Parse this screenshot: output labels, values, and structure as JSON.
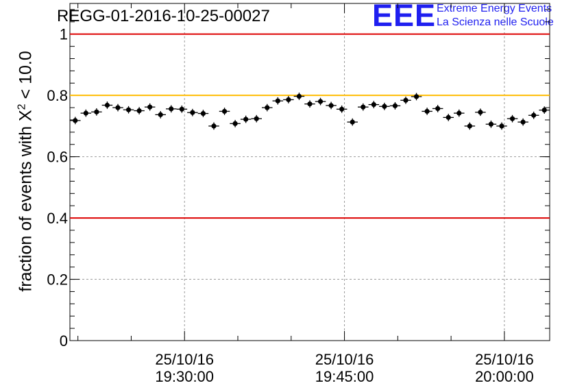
{
  "title": "REGG-01-2016-10-25-00027",
  "logo": {
    "mark": "EEE",
    "line1": "Extreme Energy Events",
    "line2": "La Scienza nelle Scuole",
    "color": "#1f1ff0"
  },
  "chart_data": {
    "type": "scatter",
    "title": "REGG-01-2016-10-25-00027",
    "ylabel_prefix": "fraction of events with X",
    "ylabel_sup": "2",
    "ylabel_suffix": " < 10.0",
    "xlabel": "",
    "ylim": [
      0,
      1.1
    ],
    "xlim_minutes": [
      19.25,
      64.25
    ],
    "yticks": [
      {
        "value": 0,
        "label": "0"
      },
      {
        "value": 0.2,
        "label": "0.2"
      },
      {
        "value": 0.4,
        "label": "0.4"
      },
      {
        "value": 0.6,
        "label": "0.6"
      },
      {
        "value": 0.8,
        "label": "0.8"
      },
      {
        "value": 1,
        "label": "1"
      }
    ],
    "xticks": [
      {
        "minutes": 30,
        "date": "25/10/16",
        "time": "19:30:00"
      },
      {
        "minutes": 45,
        "date": "25/10/16",
        "time": "19:45:00"
      },
      {
        "minutes": 60,
        "date": "25/10/16",
        "time": "20:00:00"
      }
    ],
    "reference_lines": [
      {
        "y": 1.0,
        "color": "#dd0000"
      },
      {
        "y": 0.8,
        "color": "#ffbb00"
      },
      {
        "y": 0.4,
        "color": "#dd0000"
      }
    ],
    "series": [
      {
        "name": "fraction",
        "x_minutes": [
          19.75,
          20.75,
          21.75,
          22.75,
          23.75,
          24.75,
          25.75,
          26.75,
          27.75,
          28.75,
          29.75,
          30.75,
          31.75,
          32.75,
          33.75,
          34.75,
          35.75,
          36.75,
          37.75,
          38.75,
          39.75,
          40.75,
          41.75,
          42.75,
          43.75,
          44.75,
          45.75,
          46.75,
          47.75,
          48.75,
          49.75,
          50.75,
          51.75,
          52.75,
          53.75,
          54.75,
          55.75,
          56.75,
          57.75,
          58.75,
          59.75,
          60.75,
          61.75,
          62.75,
          63.75
        ],
        "values": [
          0.718,
          0.742,
          0.746,
          0.768,
          0.76,
          0.753,
          0.75,
          0.762,
          0.737,
          0.756,
          0.755,
          0.744,
          0.741,
          0.7,
          0.748,
          0.708,
          0.722,
          0.724,
          0.76,
          0.782,
          0.786,
          0.797,
          0.772,
          0.78,
          0.767,
          0.755,
          0.713,
          0.762,
          0.77,
          0.764,
          0.766,
          0.784,
          0.796,
          0.748,
          0.757,
          0.728,
          0.742,
          0.7,
          0.745,
          0.706,
          0.7,
          0.724,
          0.713,
          0.735,
          0.752
        ],
        "error": 0.012
      }
    ]
  }
}
